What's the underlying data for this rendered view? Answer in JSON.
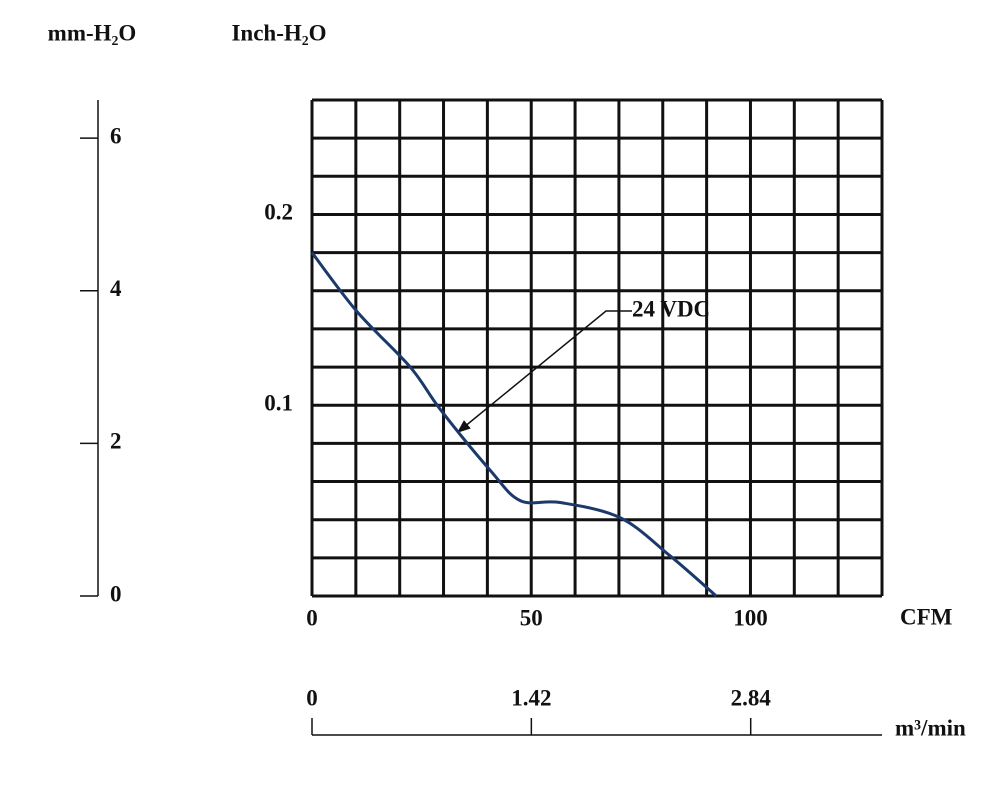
{
  "chart_data": {
    "type": "line",
    "x_label": "CFM",
    "y_label": "Inch-H₂O",
    "y2_label": "mm-H₂O",
    "x2_label": "m³/min",
    "x": [
      0,
      10.3,
      22.4,
      29.2,
      40.6,
      47.5,
      56.6,
      70.3,
      81.7,
      92.2
    ],
    "series": [
      {
        "name": "24 VDC",
        "color": "#1b3a6b",
        "values": [
          0.18,
          0.149,
          0.12,
          0.098,
          0.066,
          0.05,
          0.049,
          0.041,
          0.021,
          0
        ]
      }
    ],
    "xlim": [
      0,
      130
    ],
    "xticks": [
      0,
      50,
      100
    ],
    "ylim": [
      0,
      0.26
    ],
    "yticks": [
      0.1,
      0.2
    ],
    "y2lim": [
      0,
      6.5
    ],
    "y2ticks": [
      0,
      2,
      4,
      6
    ],
    "x2lim": [
      0,
      3.69
    ],
    "x2ticks": [
      0,
      1.42,
      2.84
    ],
    "grid": true,
    "xgrid": [
      0,
      10,
      20,
      30,
      40,
      50,
      60,
      70,
      80,
      90,
      100,
      110,
      120,
      130
    ],
    "ygrid": [
      0,
      0.02,
      0.04,
      0.06,
      0.08,
      0.1,
      0.12,
      0.14,
      0.16,
      0.18,
      0.2,
      0.22,
      0.24,
      0.26
    ]
  }
}
